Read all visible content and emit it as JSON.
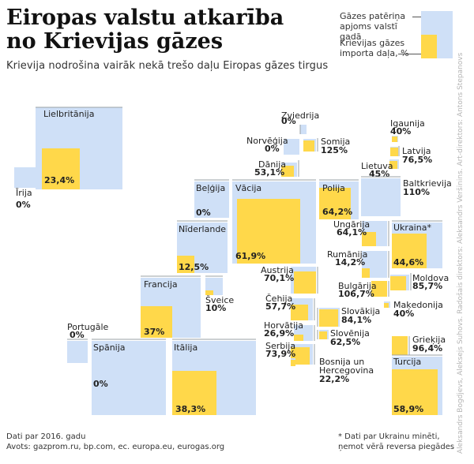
{
  "title_lines": [
    "Eiropas valstu atkarība",
    "no Krievijas gāzes"
  ],
  "subtitle": "Krievija nodrošina vairāk nekā trešo daļu Eiropas gāzes tirgus",
  "legend": {
    "consumption": "Gāzes patēriņa apjoms valstī gadā",
    "import_share": "Krievijas gāzes importa daļa, %"
  },
  "colors": {
    "consumption": "#cfe0f7",
    "import_share": "#ffd84a",
    "rule": "#9aa0a6"
  },
  "footnote_left": [
    "Dati par 2016. gadu",
    "Avots: gazprom.ru, bp.com, ec. europa.eu, eurogas.org"
  ],
  "footnote_right": "* Dati par Ukrainu minēti, ņemot vērā reversa piegādes",
  "credit": "Aleksandrs Bogdjevs, Aleksejs Suhovs. Radošais direktors: Aleksandrs Veršinins. Art-direktors: Antons Stepanovs",
  "chart_data": {
    "type": "treemap-map",
    "title": "Eiropas valstu atkarība no Krievijas gāzes",
    "subtitle": "Krievija nodrošina vairāk nekā trešo daļu Eiropas gāzes tirgus",
    "series": [
      {
        "name": "Krievijas gāzes importa daļa, %",
        "unit": "%"
      }
    ],
    "countries": [
      {
        "name": "Lielbritānija",
        "value": "23,4%"
      },
      {
        "name": "Īrija",
        "value": "0%"
      },
      {
        "name": "Zviedrija",
        "value": "0%"
      },
      {
        "name": "Norvēģija",
        "value": "0%"
      },
      {
        "name": "Somija",
        "value": "125%"
      },
      {
        "name": "Dānija",
        "value": "53,1%"
      },
      {
        "name": "Igaunija",
        "value": "40%"
      },
      {
        "name": "Latvija",
        "value": "76,5%"
      },
      {
        "name": "Lietuva",
        "value": "45%"
      },
      {
        "name": "Baltkrievija",
        "value": "110%"
      },
      {
        "name": "Beļģija",
        "value": "0%"
      },
      {
        "name": "Vācija",
        "value": "61,9%"
      },
      {
        "name": "Polija",
        "value": "64,2%"
      },
      {
        "name": "Nīderlande",
        "value": "12,5%"
      },
      {
        "name": "Ungārija",
        "value": "64,1%"
      },
      {
        "name": "Ukraina*",
        "value": "44,6%"
      },
      {
        "name": "Rumānija",
        "value": "14,2%"
      },
      {
        "name": "Moldova",
        "value": "85,7%"
      },
      {
        "name": "Bulgārija",
        "value": "106,7%"
      },
      {
        "name": "Maķedonija",
        "value": "40%"
      },
      {
        "name": "Austrija",
        "value": "70,1%"
      },
      {
        "name": "Francija",
        "value": "37%"
      },
      {
        "name": "Šveice",
        "value": "10%"
      },
      {
        "name": "Čehija",
        "value": "57,7%"
      },
      {
        "name": "Slovākija",
        "value": "84,1%"
      },
      {
        "name": "Portugāle",
        "value": "0%"
      },
      {
        "name": "Horvātija",
        "value": "26,9%"
      },
      {
        "name": "Slovēnija",
        "value": "62,5%"
      },
      {
        "name": "Spānija",
        "value": "0%"
      },
      {
        "name": "Itālija",
        "value": "38,3%"
      },
      {
        "name": "Serbija",
        "value": "73,9%"
      },
      {
        "name": "Bosnija un Hercegovina",
        "value": "22,2%"
      },
      {
        "name": "Grieķija",
        "value": "96,4%"
      },
      {
        "name": "Turcija",
        "value": "58,9%"
      }
    ]
  }
}
